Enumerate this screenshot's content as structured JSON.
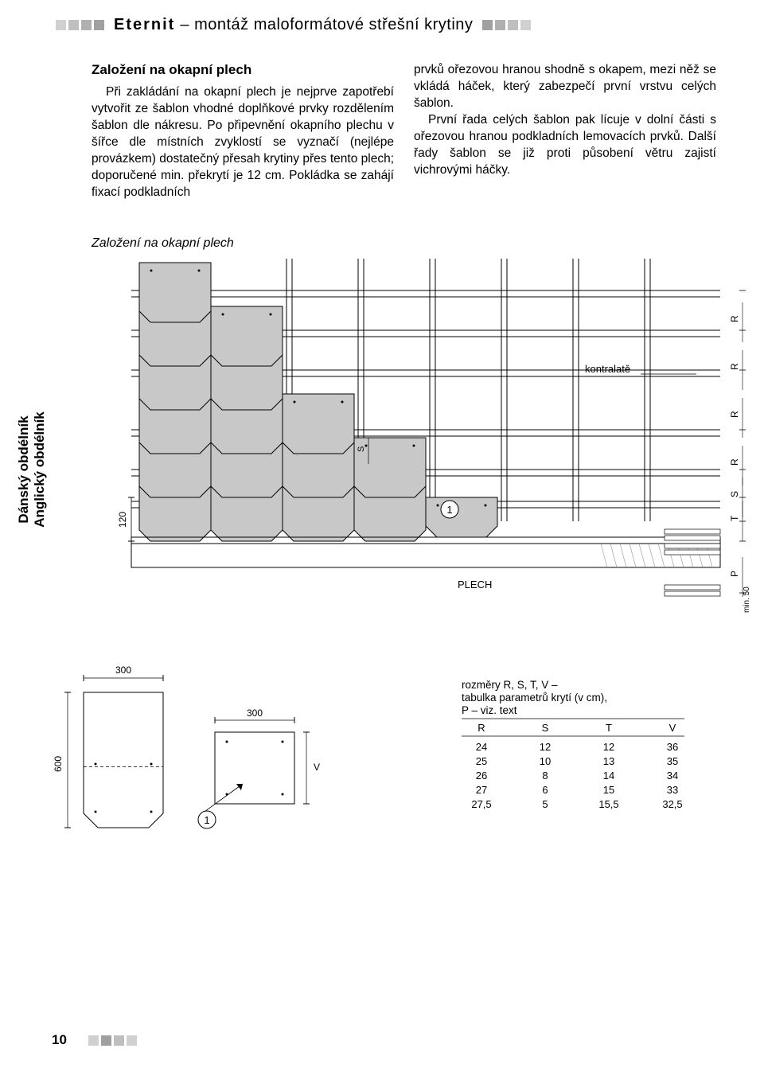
{
  "header": {
    "brand": "Eternit",
    "rest": " – montáž maloformátové střešní krytiny",
    "square_colors_left": [
      "#d0d0d0",
      "#bfbfbf",
      "#b0b0b0",
      "#a0a0a0"
    ],
    "square_colors_right": [
      "#a0a0a0",
      "#b0b0b0",
      "#bfbfbf",
      "#d0d0d0"
    ]
  },
  "section_title": "Založení na okapní plech",
  "para1": "Při zakládání na okapní plech je nejprve zapotřebí vytvořit ze šablon vhodné doplňkové prvky rozdělením šablon dle nákresu. Po připevnění okapního plechu v šířce dle místních zvyklostí se vyznačí (nejlépe provázkem) dostatečný přesah krytiny přes tento plech; doporučené min. překrytí je 12 cm. Pokládka se zahájí fixací podkladních",
  "para2a": "prvků ořezovou hranou shodně s okapem, mezi něž se vkládá háček, který zabezpečí první vrstvu celých šablon.",
  "para2b": "První řada celých šablon pak lícuje v dolní části s ořezovou hranou podkladních lemovacích prvků. Další řady šablon se již proti působení větru zajistí vichrovými háčky.",
  "caption": "Založení na okapní plech",
  "side_label1": "Dánský obdélník",
  "side_label2": "Anglický obdélník",
  "diagram": {
    "label_kontralate": "kontralatě",
    "label_plech": "PLECH",
    "label_120": "120",
    "label_300a": "300",
    "label_300b": "300",
    "label_600": "600",
    "label_V": "V",
    "label_S": "S",
    "label_1a": "1",
    "label_1b": "1",
    "side_letters": [
      "R",
      "R",
      "R",
      "R",
      "S",
      "T",
      "P"
    ],
    "label_min50": "min. 50",
    "tile_color": "#c8c8c8",
    "line_color": "#000000",
    "hatch_color": "#999999"
  },
  "params": {
    "caption1": "rozměry R, S, T, V –",
    "caption2": "tabulka parametrů krytí (v cm),",
    "caption3": "P – viz. text",
    "headers": [
      "R",
      "S",
      "T",
      "V"
    ],
    "rows": [
      [
        "24",
        "12",
        "12",
        "36"
      ],
      [
        "25",
        "10",
        "13",
        "35"
      ],
      [
        "26",
        "8",
        "14",
        "34"
      ],
      [
        "27",
        "6",
        "15",
        "33"
      ],
      [
        "27,5",
        "5",
        "15,5",
        "32,5"
      ]
    ]
  },
  "footer": {
    "page": "10",
    "square_colors": [
      "#d0d0d0",
      "#a0a0a0",
      "#bfbfbf",
      "#d0d0d0"
    ]
  }
}
